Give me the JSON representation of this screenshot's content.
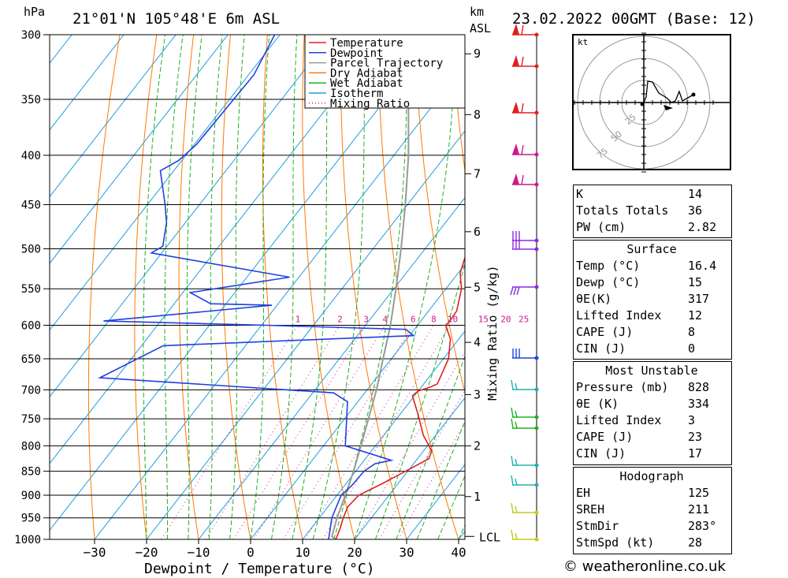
{
  "header": {
    "location": "21°01'N  105°48'E  6m  ASL",
    "datetime": "23.02.2022  00GMT  (Base: 12)",
    "pressure_unit": "hPa",
    "height_unit": "km",
    "height_unit2": "ASL"
  },
  "footer": {
    "copyright": "© weatheronline.co.uk"
  },
  "chart_data": {
    "type": "line",
    "subtype": "skew-T log-P diagram",
    "xlabel": "Dewpoint / Temperature (°C)",
    "ylabel_right": "Mixing Ratio (g/kg)",
    "x_ticks": [
      -30,
      -20,
      -10,
      0,
      10,
      20,
      30,
      40
    ],
    "pressure_levels": [
      300,
      350,
      400,
      450,
      500,
      550,
      600,
      650,
      700,
      750,
      800,
      850,
      900,
      950,
      1000
    ],
    "height_ticks": [
      {
        "km": "1",
        "p": 903
      },
      {
        "km": "2",
        "p": 800
      },
      {
        "km": "3",
        "p": 708
      },
      {
        "km": "4",
        "p": 625
      },
      {
        "km": "5",
        "p": 548
      },
      {
        "km": "6",
        "p": 480
      },
      {
        "km": "7",
        "p": 418
      },
      {
        "km": "8",
        "p": 363
      },
      {
        "km": "9",
        "p": 314
      }
    ],
    "lcl": {
      "label": "LCL",
      "p": 993
    },
    "legend": [
      "Temperature",
      "Dewpoint",
      "Parcel Trajectory",
      "Dry Adiabat",
      "Wet Adiabat",
      "Isotherm",
      "Mixing Ratio"
    ],
    "colors": {
      "temperature": "#e02020",
      "dewpoint": "#2040e0",
      "parcel": "#999999",
      "dry_adiabat": "#ff7a00",
      "wet_adiabat": "#20b020",
      "isotherm": "#1e9ee0",
      "mixing_ratio": "#cc1a8c"
    },
    "mixing_ratio_labels": [
      "1",
      "2",
      "3",
      "4",
      "6",
      "8",
      "10",
      "15",
      "20",
      "25"
    ],
    "temperature": [
      {
        "p": 1000,
        "t": 16.4
      },
      {
        "p": 975,
        "t": 15.6
      },
      {
        "p": 950,
        "t": 14.6
      },
      {
        "p": 925,
        "t": 13.8
      },
      {
        "p": 900,
        "t": 14.2
      },
      {
        "p": 875,
        "t": 17.0
      },
      {
        "p": 850,
        "t": 19.6
      },
      {
        "p": 825,
        "t": 22.2
      },
      {
        "p": 810,
        "t": 21.6
      },
      {
        "p": 780,
        "t": 17.6
      },
      {
        "p": 740,
        "t": 13.2
      },
      {
        "p": 710,
        "t": 9.6
      },
      {
        "p": 702,
        "t": 10.0
      },
      {
        "p": 695,
        "t": 11.8
      },
      {
        "p": 690,
        "t": 12.6
      },
      {
        "p": 650,
        "t": 11.0
      },
      {
        "p": 620,
        "t": 8.4
      },
      {
        "p": 600,
        "t": 5.4
      },
      {
        "p": 595,
        "t": 5.6
      },
      {
        "p": 580,
        "t": 5.4
      },
      {
        "p": 550,
        "t": 3.0
      },
      {
        "p": 530,
        "t": 0.4
      },
      {
        "p": 500,
        "t": -1.8
      },
      {
        "p": 470,
        "t": -5.4
      },
      {
        "p": 450,
        "t": -7.0
      },
      {
        "p": 425,
        "t": -8.2
      },
      {
        "p": 410,
        "t": -10.2
      },
      {
        "p": 400,
        "t": -11.6
      },
      {
        "p": 370,
        "t": -16.2
      },
      {
        "p": 360,
        "t": -17.6
      },
      {
        "p": 300,
        "t": -29.0
      }
    ],
    "dewpoint": [
      {
        "p": 1000,
        "t": 15.0
      },
      {
        "p": 950,
        "t": 12.4
      },
      {
        "p": 900,
        "t": 10.8
      },
      {
        "p": 880,
        "t": 11.4
      },
      {
        "p": 850,
        "t": 11.6
      },
      {
        "p": 835,
        "t": 12.6
      },
      {
        "p": 828,
        "t": 15.2
      },
      {
        "p": 800,
        "t": 4.2
      },
      {
        "p": 720,
        "t": -2.0
      },
      {
        "p": 705,
        "t": -6.0
      },
      {
        "p": 700,
        "t": -15.4
      },
      {
        "p": 680,
        "t": -53.2
      },
      {
        "p": 630,
        "t": -45.8
      },
      {
        "p": 615,
        "t": 0.8
      },
      {
        "p": 606,
        "t": -1.6
      },
      {
        "p": 600,
        "t": -29.0
      },
      {
        "p": 594,
        "t": -61.0
      },
      {
        "p": 572,
        "t": -31.0
      },
      {
        "p": 570,
        "t": -43.0
      },
      {
        "p": 555,
        "t": -48.6
      },
      {
        "p": 535,
        "t": -31.8
      },
      {
        "p": 505,
        "t": -62.0
      },
      {
        "p": 497,
        "t": -60.8
      },
      {
        "p": 470,
        "t": -63.6
      },
      {
        "p": 450,
        "t": -66.6
      },
      {
        "p": 415,
        "t": -72.6
      },
      {
        "p": 405,
        "t": -70.6
      },
      {
        "p": 390,
        "t": -69.6
      },
      {
        "p": 330,
        "t": -69.0
      },
      {
        "p": 300,
        "t": -71.0
      }
    ],
    "parcel": [
      {
        "p": 1000,
        "t": 16.4
      },
      {
        "p": 993,
        "t": 15.2
      },
      {
        "p": 950,
        "t": 13.4
      },
      {
        "p": 900,
        "t": 11.6
      },
      {
        "p": 850,
        "t": 9.6
      },
      {
        "p": 800,
        "t": 7.2
      },
      {
        "p": 750,
        "t": 4.6
      },
      {
        "p": 700,
        "t": 1.8
      },
      {
        "p": 650,
        "t": -1.6
      },
      {
        "p": 600,
        "t": -5.2
      },
      {
        "p": 550,
        "t": -9.6
      },
      {
        "p": 500,
        "t": -14.6
      },
      {
        "p": 450,
        "t": -20.4
      },
      {
        "p": 400,
        "t": -27.2
      },
      {
        "p": 350,
        "t": -35.6
      },
      {
        "p": 300,
        "t": -45.6
      }
    ]
  },
  "hodograph": {
    "unit": "kt",
    "ring_labels": [
      "25",
      "50",
      "75"
    ]
  },
  "indices": {
    "general": [
      {
        "label": "K",
        "value": "14"
      },
      {
        "label": "Totals Totals",
        "value": "36"
      },
      {
        "label": "PW (cm)",
        "value": "2.82"
      }
    ],
    "surface": {
      "title": "Surface",
      "rows": [
        {
          "label": "Temp (°C)",
          "value": "16.4"
        },
        {
          "label": "Dewp (°C)",
          "value": "15"
        },
        {
          "label": "θE(K)",
          "value": "317"
        },
        {
          "label": "Lifted Index",
          "value": "12"
        },
        {
          "label": "CAPE (J)",
          "value": "8"
        },
        {
          "label": "CIN (J)",
          "value": "0"
        }
      ]
    },
    "most_unstable": {
      "title": "Most Unstable",
      "rows": [
        {
          "label": "Pressure (mb)",
          "value": "828"
        },
        {
          "label": "θE (K)",
          "value": "334"
        },
        {
          "label": "Lifted Index",
          "value": "3"
        },
        {
          "label": "CAPE (J)",
          "value": "23"
        },
        {
          "label": "CIN (J)",
          "value": "17"
        }
      ]
    },
    "hodograph_box": {
      "title": "Hodograph",
      "rows": [
        {
          "label": "EH",
          "value": "125"
        },
        {
          "label": "SREH",
          "value": "211"
        },
        {
          "label": "StmDir",
          "value": "283°"
        },
        {
          "label": "StmSpd (kt)",
          "value": "28"
        }
      ]
    }
  }
}
